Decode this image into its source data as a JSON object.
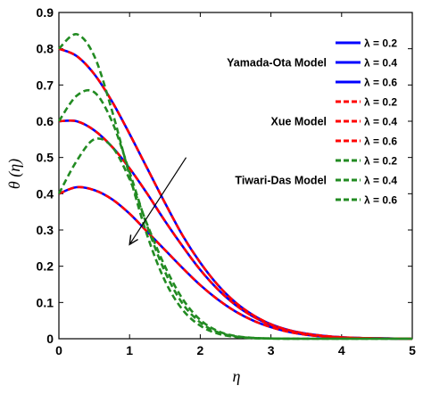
{
  "chart_data": {
    "type": "line",
    "xlabel": "η",
    "ylabel": "θ (η)",
    "xlim": [
      0,
      5
    ],
    "ylim": [
      0,
      0.9
    ],
    "x_ticks": [
      "0",
      "1",
      "2",
      "3",
      "4",
      "5"
    ],
    "y_ticks": [
      "0",
      "0.1",
      "0.2",
      "0.3",
      "0.4",
      "0.5",
      "0.6",
      "0.7",
      "0.8",
      "0.9"
    ],
    "grid": false,
    "legend_position": "top-right",
    "group_labels": [
      "Yamada-Ota Model",
      "Xue Model",
      "Tiwari-Das Model"
    ],
    "legend": [
      {
        "label": "λ = 0.2",
        "color": "#0000ff",
        "style": "solid"
      },
      {
        "label": "λ = 0.4",
        "color": "#0000ff",
        "style": "solid"
      },
      {
        "label": "λ = 0.6",
        "color": "#0000ff",
        "style": "solid"
      },
      {
        "label": "λ = 0.2",
        "color": "#ff0000",
        "style": "dashed"
      },
      {
        "label": "λ = 0.4",
        "color": "#ff0000",
        "style": "dashed"
      },
      {
        "label": "λ = 0.6",
        "color": "#ff0000",
        "style": "dashed"
      },
      {
        "label": "λ = 0.2",
        "color": "#228b22",
        "style": "dashed"
      },
      {
        "label": "λ = 0.4",
        "color": "#228b22",
        "style": "dashed"
      },
      {
        "label": "λ = 0.6",
        "color": "#228b22",
        "style": "dashed"
      }
    ],
    "x": [
      0,
      0.25,
      0.5,
      0.75,
      1,
      1.25,
      1.5,
      1.75,
      2,
      2.25,
      2.5,
      2.75,
      3,
      3.25,
      3.5,
      3.75,
      4,
      4.25,
      4.5,
      4.75,
      5
    ],
    "series": [
      {
        "model": "Yamada-Ota",
        "lambda": "0.2",
        "color": "#0000ff",
        "style": "solid",
        "values": [
          0.8,
          0.78,
          0.73,
          0.655,
          0.565,
          0.47,
          0.375,
          0.285,
          0.21,
          0.148,
          0.1,
          0.065,
          0.04,
          0.024,
          0.014,
          0.008,
          0.004,
          0.002,
          0.001,
          0.0005,
          0.0
        ]
      },
      {
        "model": "Yamada-Ota",
        "lambda": "0.4",
        "color": "#0000ff",
        "style": "solid",
        "values": [
          0.6,
          0.6,
          0.575,
          0.53,
          0.47,
          0.4,
          0.325,
          0.255,
          0.19,
          0.136,
          0.093,
          0.061,
          0.038,
          0.023,
          0.013,
          0.007,
          0.004,
          0.002,
          0.001,
          0.0005,
          0.0
        ]
      },
      {
        "model": "Yamada-Ota",
        "lambda": "0.6",
        "color": "#0000ff",
        "style": "solid",
        "values": [
          0.4,
          0.418,
          0.41,
          0.385,
          0.345,
          0.295,
          0.245,
          0.195,
          0.148,
          0.108,
          0.075,
          0.05,
          0.032,
          0.019,
          0.011,
          0.006,
          0.003,
          0.0015,
          0.0008,
          0.0003,
          0.0
        ]
      },
      {
        "model": "Xue",
        "lambda": "0.2",
        "color": "#ff0000",
        "style": "dashed",
        "values": [
          0.8,
          0.78,
          0.73,
          0.655,
          0.565,
          0.47,
          0.375,
          0.285,
          0.21,
          0.148,
          0.1,
          0.065,
          0.04,
          0.024,
          0.014,
          0.008,
          0.004,
          0.002,
          0.001,
          0.0005,
          0.0
        ]
      },
      {
        "model": "Xue",
        "lambda": "0.4",
        "color": "#ff0000",
        "style": "dashed",
        "values": [
          0.6,
          0.6,
          0.575,
          0.53,
          0.47,
          0.4,
          0.325,
          0.255,
          0.19,
          0.136,
          0.093,
          0.061,
          0.038,
          0.023,
          0.013,
          0.007,
          0.004,
          0.002,
          0.001,
          0.0005,
          0.0
        ]
      },
      {
        "model": "Xue",
        "lambda": "0.6",
        "color": "#ff0000",
        "style": "dashed",
        "values": [
          0.4,
          0.418,
          0.41,
          0.385,
          0.345,
          0.295,
          0.245,
          0.195,
          0.148,
          0.108,
          0.075,
          0.05,
          0.032,
          0.019,
          0.011,
          0.006,
          0.003,
          0.0015,
          0.0008,
          0.0003,
          0.0
        ]
      },
      {
        "model": "Tiwari-Das",
        "lambda": "0.2",
        "color": "#228b22",
        "style": "dashed",
        "values": [
          0.8,
          0.84,
          0.78,
          0.63,
          0.45,
          0.285,
          0.16,
          0.08,
          0.036,
          0.014,
          0.005,
          0.0015,
          0.0005,
          0.0001,
          0,
          0,
          0,
          0,
          0,
          0,
          0
        ]
      },
      {
        "model": "Tiwari-Das",
        "lambda": "0.4",
        "color": "#228b22",
        "style": "dashed",
        "values": [
          0.6,
          0.67,
          0.68,
          0.6,
          0.46,
          0.31,
          0.185,
          0.097,
          0.045,
          0.018,
          0.0065,
          0.002,
          0.0006,
          0.0001,
          0,
          0,
          0,
          0,
          0,
          0,
          0
        ]
      },
      {
        "model": "Tiwari-Das",
        "lambda": "0.6",
        "color": "#228b22",
        "style": "dashed",
        "values": [
          0.4,
          0.49,
          0.55,
          0.53,
          0.44,
          0.315,
          0.2,
          0.11,
          0.052,
          0.021,
          0.0075,
          0.0024,
          0.0007,
          0.0002,
          0,
          0,
          0,
          0,
          0,
          0,
          0
        ]
      }
    ],
    "annotation": {
      "type": "arrow",
      "from": [
        1.8,
        0.5
      ],
      "to": [
        1.0,
        0.26
      ]
    }
  }
}
